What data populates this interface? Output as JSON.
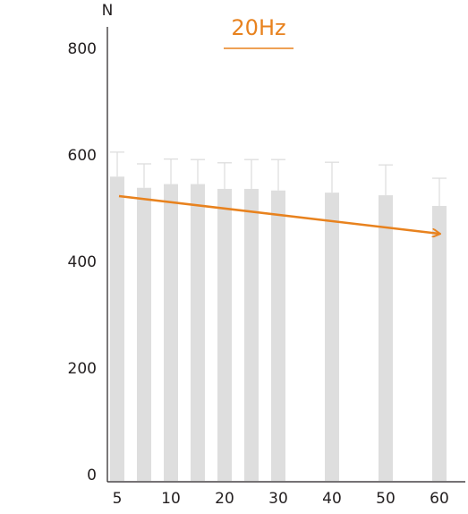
{
  "chart_data": {
    "type": "bar",
    "title": "20Hz",
    "y_label": "N",
    "categories": [
      "5",
      null,
      "10",
      null,
      "20",
      null,
      "30",
      null,
      "40",
      null,
      "50",
      null,
      "60"
    ],
    "values": [
      571,
      550,
      557,
      557,
      548,
      548,
      545,
      null,
      541,
      null,
      536,
      null,
      516
    ],
    "errors": [
      46,
      45,
      47,
      46,
      49,
      55,
      58,
      null,
      57,
      null,
      57,
      null,
      52
    ],
    "color": "#dedede",
    "title_color": "#e8821e",
    "ylim": [
      0,
      800
    ],
    "yticks": [
      0,
      200,
      400,
      600,
      800
    ],
    "grid": false
  }
}
